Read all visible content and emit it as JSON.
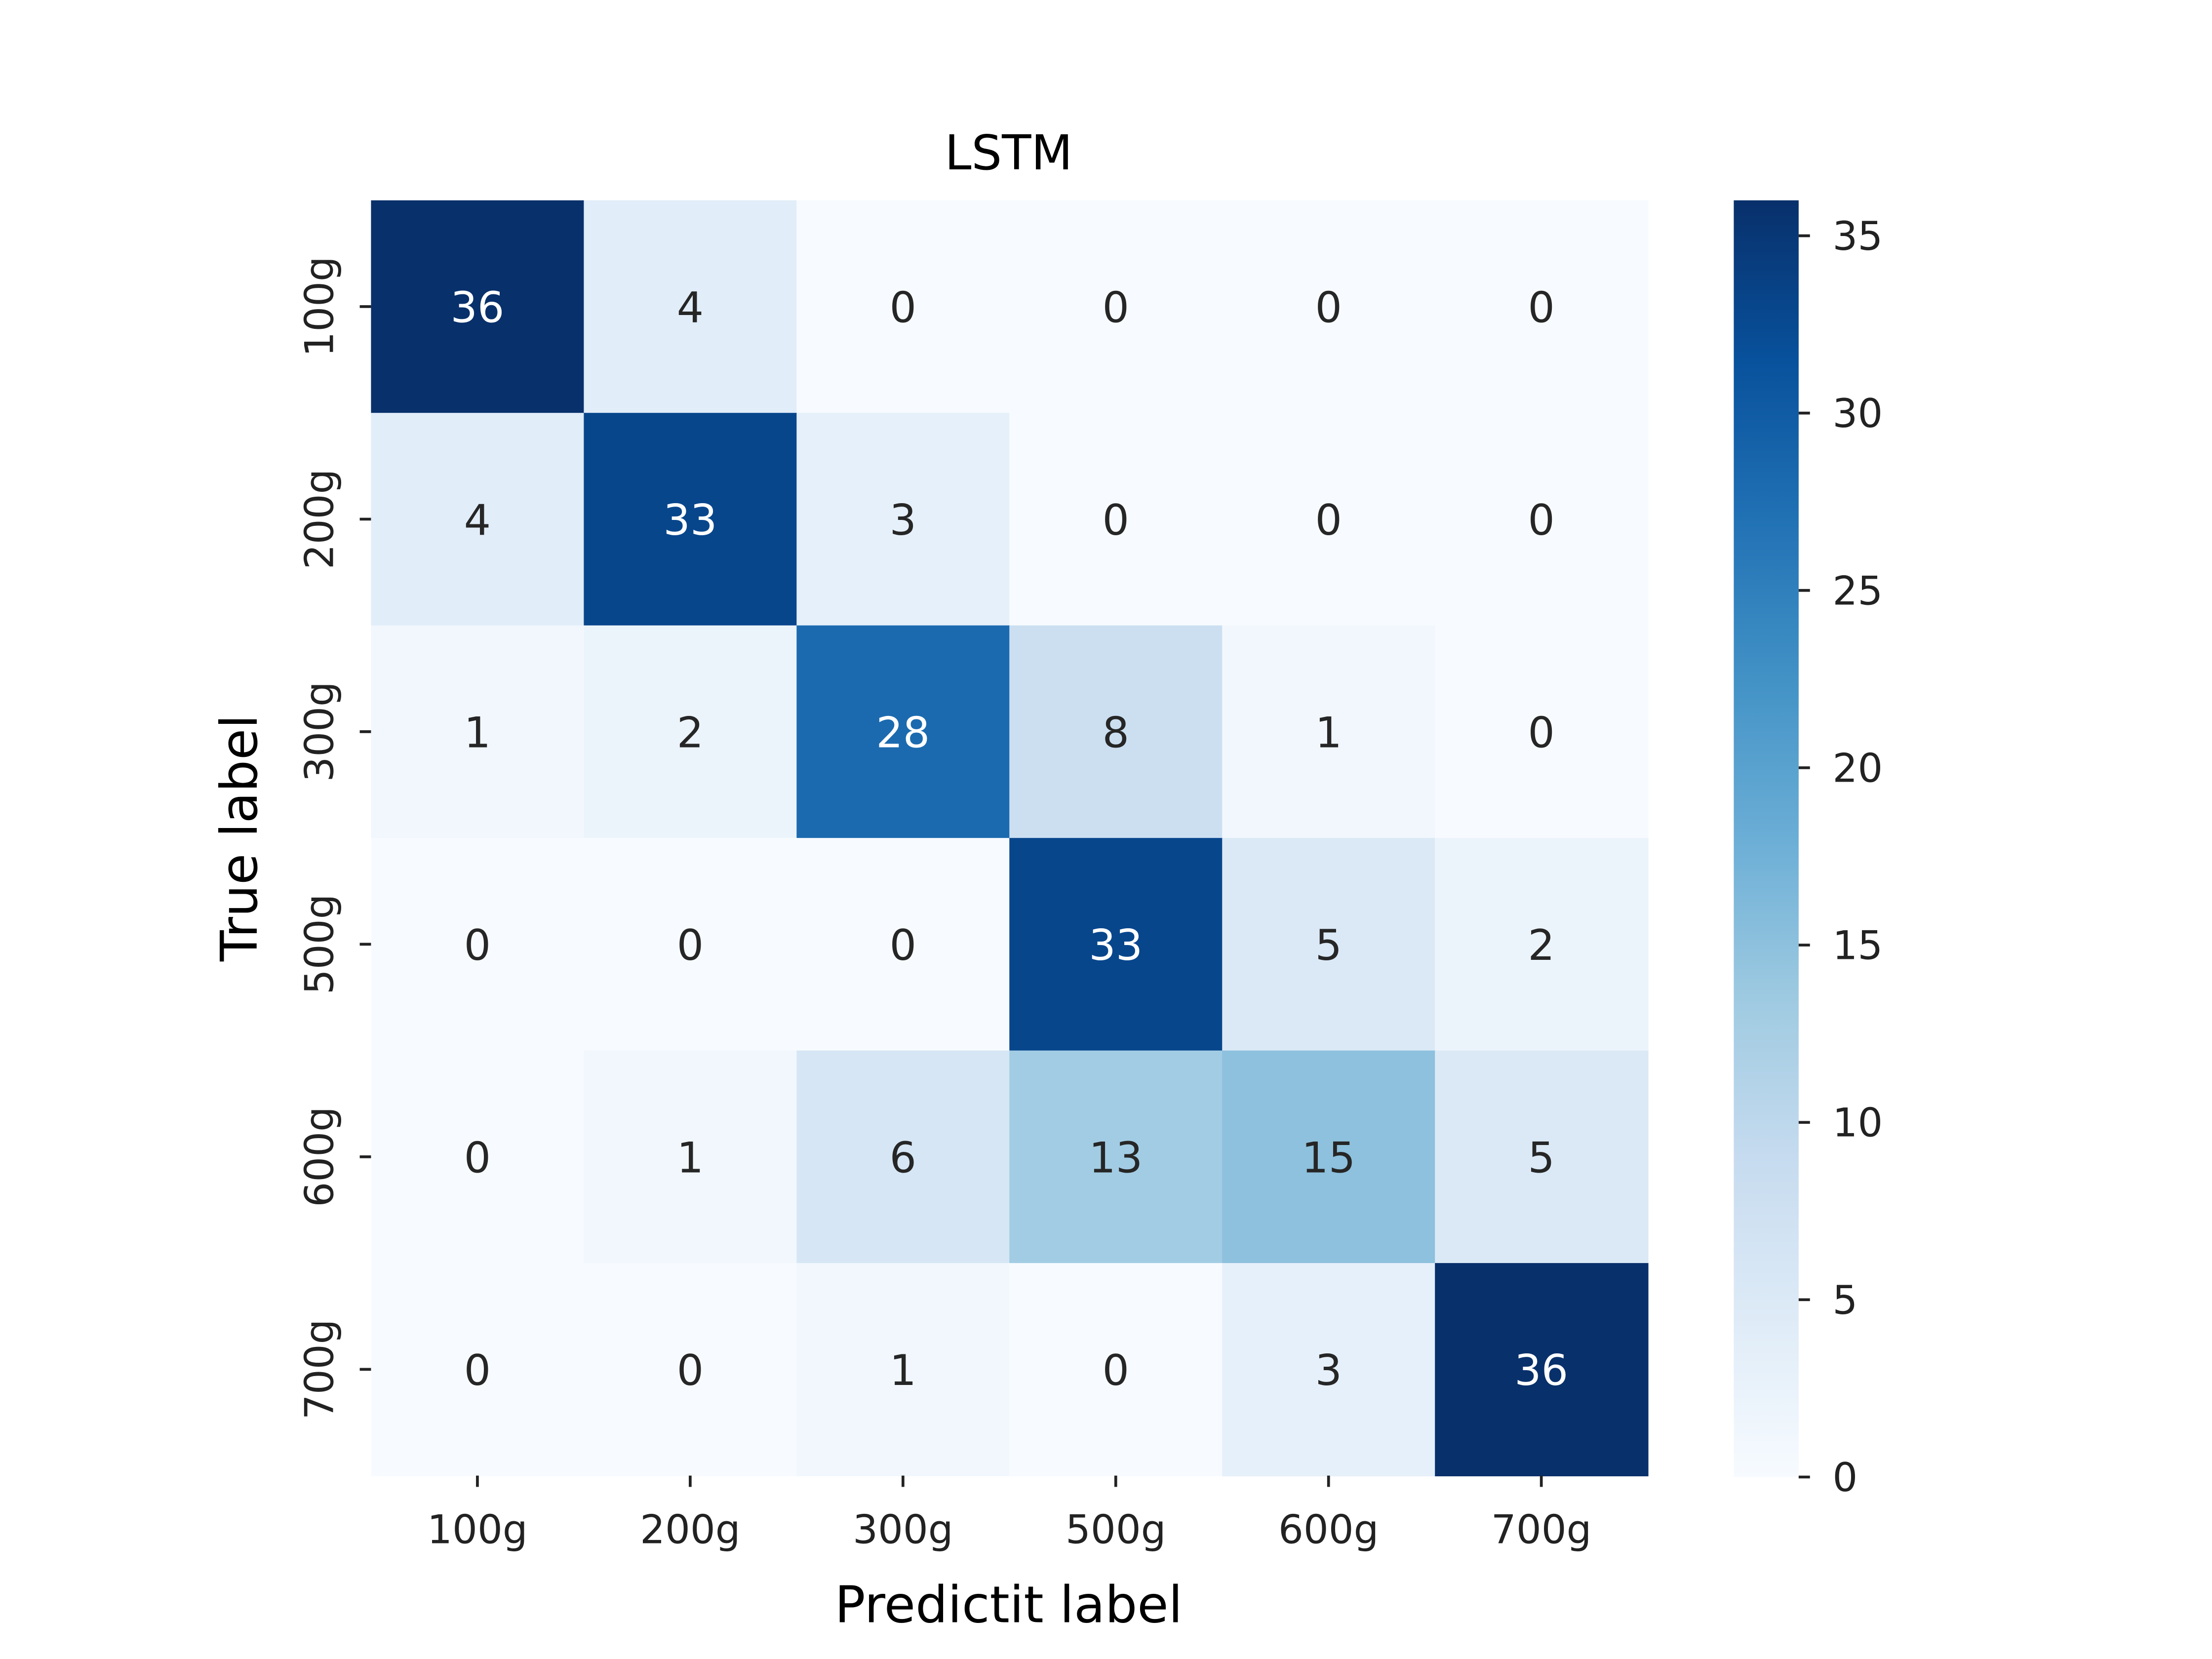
{
  "chart_data": {
    "type": "heatmap",
    "title": "LSTM",
    "xlabel": "Predictit label",
    "ylabel": "True label",
    "x_categories": [
      "100g",
      "200g",
      "300g",
      "500g",
      "600g",
      "700g"
    ],
    "y_categories": [
      "100g",
      "200g",
      "300g",
      "500g",
      "600g",
      "700g"
    ],
    "values": [
      [
        36,
        4,
        0,
        0,
        0,
        0
      ],
      [
        4,
        33,
        3,
        0,
        0,
        0
      ],
      [
        1,
        2,
        28,
        8,
        1,
        0
      ],
      [
        0,
        0,
        0,
        33,
        5,
        2
      ],
      [
        0,
        1,
        6,
        13,
        15,
        5
      ],
      [
        0,
        0,
        1,
        0,
        3,
        36
      ]
    ],
    "colormap": "Blues",
    "colorbar": {
      "range": [
        0,
        36
      ],
      "ticks": [
        0,
        5,
        10,
        15,
        20,
        25,
        30,
        35
      ]
    }
  }
}
